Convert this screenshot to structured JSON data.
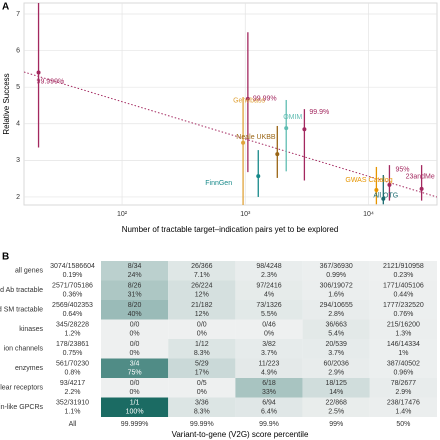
{
  "chart_data": [
    {
      "type": "scatter",
      "panel_label": "A",
      "xlabel": "Number of tractable target–indication pairs yet to be explored",
      "ylabel": "Relative Success",
      "log_x": true,
      "grid": true,
      "xlim": [
        16,
        36000
      ],
      "xticks": [
        {
          "value": 100,
          "label": "10²"
        },
        {
          "value": 1000,
          "label": "10³"
        },
        {
          "value": 10000,
          "label": "10⁴"
        }
      ],
      "ylim": [
        1.78,
        7.3
      ],
      "yticks": [
        2,
        3,
        4,
        5,
        6,
        7
      ],
      "series": [
        {
          "name": "99.999%",
          "color": "#a3285f",
          "x": [
            21
          ],
          "values": [
            5.4
          ],
          "low": [
            3.35
          ],
          "high": [
            7.6
          ]
        },
        {
          "name": "Genebass",
          "color": "#e0a33a",
          "x": [
            960
          ],
          "values": [
            3.48
          ],
          "low": [
            1.7
          ],
          "high": [
            4.73
          ]
        },
        {
          "name": "FinnGen",
          "color": "#17898a",
          "x": [
            1275
          ],
          "values": [
            2.57
          ],
          "low": [
            2.0
          ],
          "high": [
            3.28
          ]
        },
        {
          "name": "Neale UKBB",
          "color": "#9a6514",
          "x": [
            1820
          ],
          "values": [
            3.17
          ],
          "low": [
            2.52
          ],
          "high": [
            3.94
          ]
        },
        {
          "name": "OMIM",
          "color": "#5fbdb2",
          "x": [
            2150
          ],
          "values": [
            3.88
          ],
          "low": [
            2.7
          ],
          "high": [
            4.65
          ]
        },
        {
          "name": "99.99%",
          "color": "#a3285f",
          "x": [
            1050
          ],
          "values": [
            4.68
          ],
          "low": [
            2.68
          ],
          "high": [
            6.5
          ]
        },
        {
          "name": "99.9%",
          "color": "#a3285f",
          "x": [
            3020
          ],
          "values": [
            3.85
          ],
          "low": [
            2.45
          ],
          "high": [
            4.4
          ]
        },
        {
          "name": "GWAS Catalog",
          "color": "#e69500",
          "x": [
            11600
          ],
          "values": [
            2.19
          ],
          "low": [
            1.8
          ],
          "high": [
            2.82
          ]
        },
        {
          "name": "All OTG",
          "color": "#1b6b70",
          "x": [
            13200
          ],
          "values": [
            1.95
          ],
          "low": [
            1.8
          ],
          "high": [
            2.6
          ]
        },
        {
          "name": "95%",
          "color": "#a3285f",
          "x": [
            14800
          ],
          "values": [
            2.33
          ],
          "low": [
            1.9
          ],
          "high": [
            2.87
          ]
        },
        {
          "name": "23andMe",
          "color": "#a3285f",
          "x": [
            27000
          ],
          "values": [
            2.22
          ],
          "low": [
            1.9
          ],
          "high": [
            2.87
          ]
        }
      ]
    },
    {
      "type": "heatmap",
      "panel_label": "B",
      "xlabel": "Variant-to-gene (V2G) score percentile",
      "categories": [
        "All",
        "99.999%",
        "99.99%",
        "99.9%",
        "99%",
        "50%"
      ],
      "color_low": "#eef0f0",
      "color_high": "#1b6b63",
      "rows": [
        {
          "name": "all genes",
          "counts": [
            "3074/1586604",
            "8/34",
            "26/366",
            "98/4248",
            "367/36930",
            "2121/910958"
          ],
          "values": [
            0.19,
            24,
            7.1,
            2.3,
            0.99,
            0.23
          ],
          "value_labels": [
            "0.19%",
            "24%",
            "7.1%",
            "2.3%",
            "0.99%",
            "0.23%"
          ]
        },
        {
          "name": "predicted Ab tractable",
          "counts": [
            "2571/705186",
            "8/26",
            "26/224",
            "97/2416",
            "306/19072",
            "1771/405106"
          ],
          "values": [
            0.36,
            31,
            12,
            4,
            1.6,
            0.44
          ],
          "value_labels": [
            "0.36%",
            "31%",
            "12%",
            "4%",
            "1.6%",
            "0.44%"
          ]
        },
        {
          "name": "predicted SM tractable",
          "counts": [
            "2569/402353",
            "8/20",
            "21/182",
            "73/1326",
            "294/10655",
            "1777/232520"
          ],
          "values": [
            0.64,
            40,
            12,
            5.5,
            2.8,
            0.76
          ],
          "value_labels": [
            "0.64%",
            "40%",
            "12%",
            "5.5%",
            "2.8%",
            "0.76%"
          ]
        },
        {
          "name": "kinases",
          "counts": [
            "345/28228",
            "0/0",
            "0/0",
            "0/46",
            "36/663",
            "215/16200"
          ],
          "values": [
            1.2,
            0,
            0,
            0,
            5.4,
            1.3
          ],
          "value_labels": [
            "1.2%",
            "0%",
            "0%",
            "0%",
            "5.4%",
            "1.3%"
          ]
        },
        {
          "name": "ion channels",
          "counts": [
            "178/23861",
            "0/0",
            "1/12",
            "3/82",
            "20/539",
            "146/14334"
          ],
          "values": [
            0.75,
            0,
            8.3,
            3.7,
            3.7,
            1
          ],
          "value_labels": [
            "0.75%",
            "0%",
            "8.3%",
            "3.7%",
            "3.7%",
            "1%"
          ]
        },
        {
          "name": "enzymes",
          "counts": [
            "561/70230",
            "3/4",
            "5/29",
            "11/223",
            "60/2036",
            "387/40502"
          ],
          "values": [
            0.8,
            75,
            17,
            4.9,
            2.9,
            0.96
          ],
          "value_labels": [
            "0.8%",
            "75%",
            "17%",
            "4.9%",
            "2.9%",
            "0.96%"
          ]
        },
        {
          "name": "nuclear receptors",
          "counts": [
            "93/4217",
            "0/0",
            "0/5",
            "6/18",
            "18/125",
            "78/2677"
          ],
          "values": [
            2.2,
            0,
            0,
            33,
            14,
            2.9
          ],
          "value_labels": [
            "2.2%",
            "0%",
            "0%",
            "33%",
            "14%",
            "2.9%"
          ]
        },
        {
          "name": "rhodopsin-like GPCRs",
          "counts": [
            "352/31910",
            "1/1",
            "3/36",
            "6/94",
            "22/868",
            "238/17476"
          ],
          "values": [
            1.1,
            100,
            8.3,
            6.4,
            2.5,
            1.4
          ],
          "value_labels": [
            "1.1%",
            "100%",
            "8.3%",
            "6.4%",
            "2.5%",
            "1.4%"
          ]
        }
      ]
    }
  ]
}
